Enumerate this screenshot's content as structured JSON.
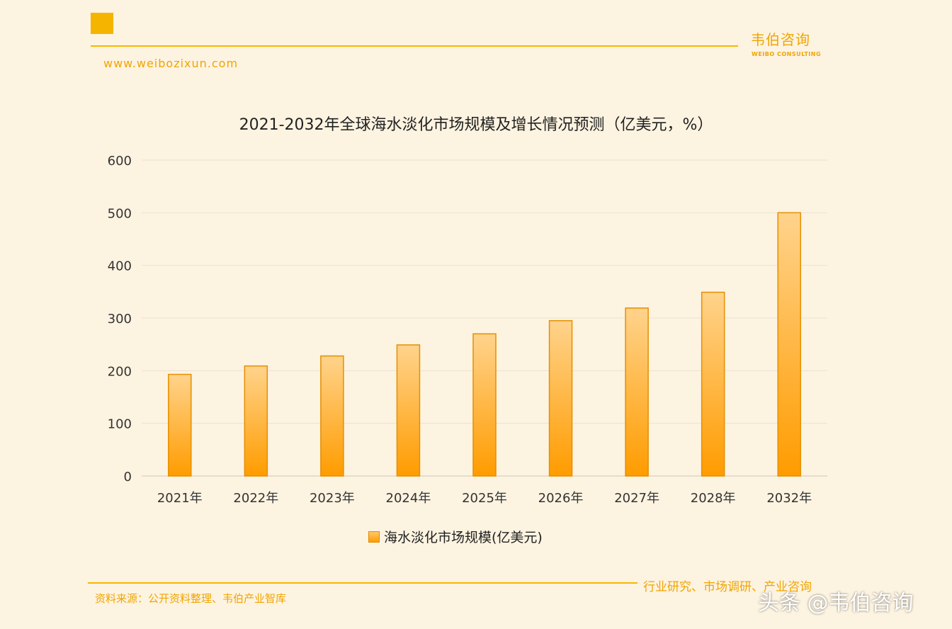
{
  "header": {
    "brand": "韦伯咨询",
    "brand_sub": "WEIBO CONSULTING",
    "website": "www.weibozixun.com"
  },
  "footer": {
    "source": "资料来源：公开资料整理、韦伯产业智库",
    "tagline": "行业研究、市场调研、产业咨询",
    "watermark": "头条 @韦伯咨询"
  },
  "colors": {
    "accent": "#f5b400",
    "bar_top": "#ffd38c",
    "bar_bottom": "#ff9c00",
    "background": "#fdf3e1"
  },
  "chart_data": {
    "type": "bar",
    "title": "2021-2032年全球海水淡化市场规模及增长情况预测（亿美元，%）",
    "categories": [
      "2021年",
      "2022年",
      "2023年",
      "2024年",
      "2025年",
      "2026年",
      "2027年",
      "2028年",
      "2032年"
    ],
    "series": [
      {
        "name": "海水淡化市场规模(亿美元)",
        "values": [
          193,
          209,
          228,
          249,
          270,
          295,
          319,
          349,
          500
        ]
      }
    ],
    "ylim": [
      0,
      600
    ],
    "yticks": [
      0,
      100,
      200,
      300,
      400,
      500,
      600
    ],
    "grid": true,
    "legend": "bottom-center"
  }
}
